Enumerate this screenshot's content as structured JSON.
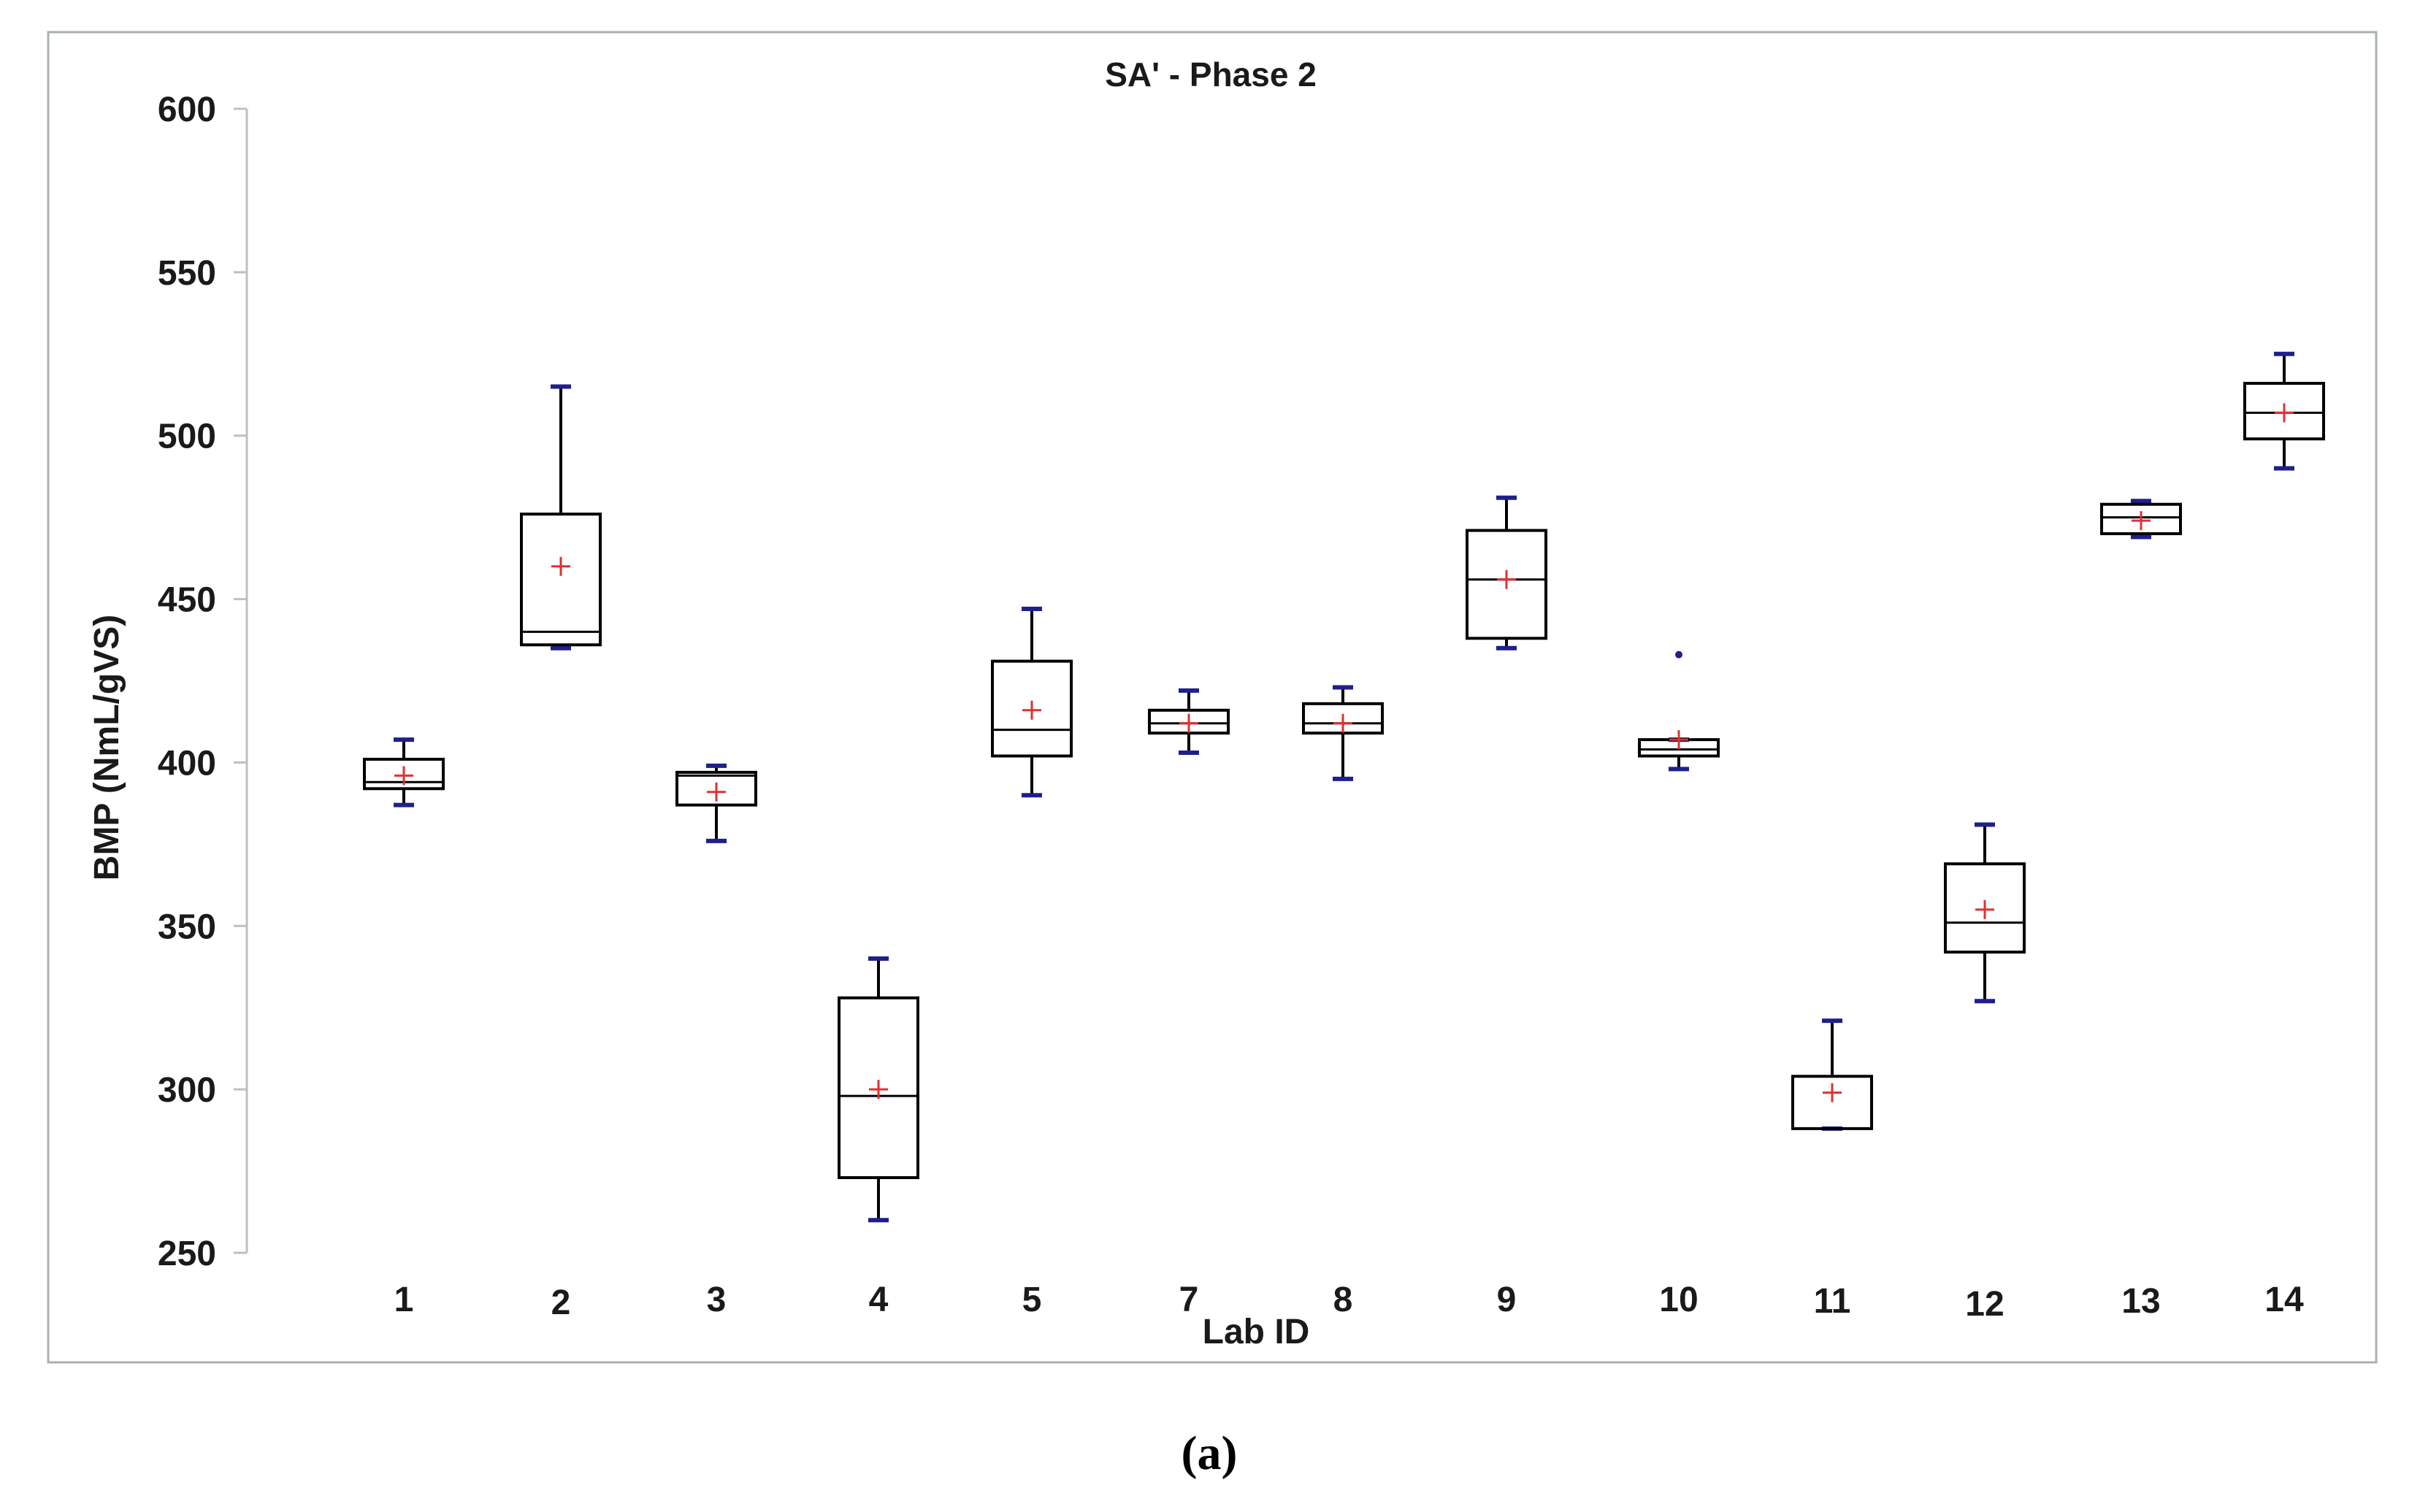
{
  "caption": "(a)",
  "chart_data": {
    "type": "box",
    "title": "SA' - Phase 2",
    "xlabel": "Lab ID",
    "ylabel": "BMP (NmL/gVS)",
    "ylim": [
      250,
      600
    ],
    "yticks": [
      250,
      300,
      350,
      400,
      450,
      500,
      550,
      600
    ],
    "categories": [
      "1",
      "2",
      "3",
      "4",
      "5",
      "7",
      "8",
      "9",
      "10",
      "11",
      "12",
      "13",
      "14"
    ],
    "boxes": [
      {
        "label": "1",
        "min": 387,
        "q1": 392,
        "median": 394,
        "q3": 401,
        "max": 407,
        "mean": 396
      },
      {
        "label": "2",
        "min": 435,
        "q1": 436,
        "median": 440,
        "q3": 476,
        "max": 515,
        "mean": 460
      },
      {
        "label": "3",
        "min": 376,
        "q1": 387,
        "median": 396,
        "q3": 397,
        "max": 399,
        "mean": 391
      },
      {
        "label": "4",
        "min": 260,
        "q1": 273,
        "median": 298,
        "q3": 328,
        "max": 340,
        "mean": 300
      },
      {
        "label": "5",
        "min": 390,
        "q1": 402,
        "median": 410,
        "q3": 431,
        "max": 447,
        "mean": 416
      },
      {
        "label": "7",
        "min": 403,
        "q1": 409,
        "median": 412,
        "q3": 416,
        "max": 422,
        "mean": 412
      },
      {
        "label": "8",
        "min": 395,
        "q1": 409,
        "median": 412,
        "q3": 418,
        "max": 423,
        "mean": 412
      },
      {
        "label": "9",
        "min": 435,
        "q1": 438,
        "median": 456,
        "q3": 471,
        "max": 481,
        "mean": 456
      },
      {
        "label": "10",
        "min": 398,
        "q1": 402,
        "median": 404,
        "q3": 407,
        "max": 407,
        "mean": 407,
        "outliers": [
          433
        ]
      },
      {
        "label": "11",
        "min": 288,
        "q1": 288,
        "median": 288,
        "q3": 304,
        "max": 321,
        "mean": 299
      },
      {
        "label": "12",
        "min": 327,
        "q1": 342,
        "median": 351,
        "q3": 369,
        "max": 381,
        "mean": 355
      },
      {
        "label": "13",
        "min": 469,
        "q1": 470,
        "median": 475,
        "q3": 479,
        "max": 480,
        "mean": 474
      },
      {
        "label": "14",
        "min": 490,
        "q1": 499,
        "median": 507,
        "q3": 516,
        "max": 525,
        "mean": 507
      }
    ],
    "colors": {
      "box": "#000000",
      "whisker_cap": "#1f1f8c",
      "mean_marker": "#e03030",
      "outlier": "#1f1f8c",
      "axis": "#bfbfbf",
      "frame": "#a9b0b0"
    },
    "grid": false,
    "legend": "none"
  }
}
